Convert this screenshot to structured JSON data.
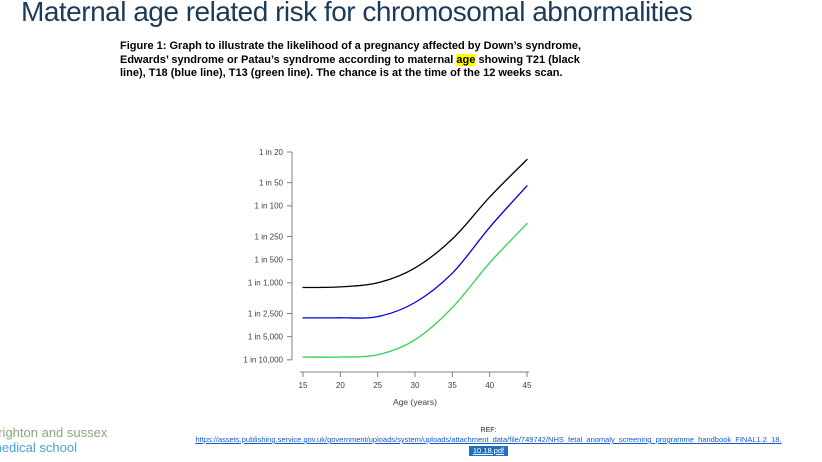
{
  "slide": {
    "title": "Maternal age related risk for chromosomal abnormalities",
    "caption": {
      "line1": "Figure 1: Graph to illustrate the likelihood of a pregnancy affected by Down’s syndrome,",
      "line2_pre": "Edwards’ syndrome or Patau’s syndrome according to maternal ",
      "line2_highlight": "age",
      "line2_post": " showing T21 (black",
      "line3": "line), T18 (blue line), T13 (green line). The chance is at the time of the 12 weeks scan."
    },
    "footer": {
      "logo_line1": "brighton and sussex",
      "logo_line2": "medical school",
      "ref_label": "REF:",
      "ref_url_line1": "https://assets.publishing.service.gov.uk/government/uploads/system/uploads/attachment_data/file/749742/NHS_fetal_anomaly_screening_programme_handbook_FINAL1.2_18.",
      "ref_url_line2": "10.18.pdf"
    }
  },
  "colors": {
    "title": "#1d3a56",
    "highlight": "#ffff00",
    "axis_line": "#808080",
    "tick_label": "#404040",
    "link": "#1459c7",
    "link_selection_bg": "#1e6fbe",
    "logo_green": "#8aa77c",
    "logo_blue": "#46a2d9"
  },
  "chart_data": {
    "type": "line",
    "title": "",
    "xlabel": "Age (years)",
    "ylabel": "",
    "x_axis": {
      "label": "Age (years)",
      "ticks": [
        15,
        20,
        25,
        30,
        35,
        40,
        45
      ],
      "lim": [
        15,
        45
      ]
    },
    "y_axis": {
      "scale": "log (risk '1 in N', N increases downward)",
      "ticks": [
        {
          "label": "1 in 20",
          "n": 20
        },
        {
          "label": "1 in 50",
          "n": 50
        },
        {
          "label": "1 in 100",
          "n": 100
        },
        {
          "label": "1 in 250",
          "n": 250
        },
        {
          "label": "1 in 500",
          "n": 500
        },
        {
          "label": "1 in 1,000",
          "n": 1000
        },
        {
          "label": "1 in 2,500",
          "n": 2500
        },
        {
          "label": "1 in 5,000",
          "n": 5000
        },
        {
          "label": "1 in 10,000",
          "n": 10000
        }
      ],
      "lim_n": [
        20,
        10000
      ]
    },
    "grid": false,
    "legend": "none (described in caption: T21 black, T18 blue, T13 green)",
    "series": [
      {
        "name": "T21 (Down's syndrome)",
        "color": "#000000",
        "x": [
          15,
          20,
          25,
          30,
          35,
          40,
          45
        ],
        "risk_1_in": [
          1150,
          1130,
          1000,
          640,
          270,
          77,
          25
        ]
      },
      {
        "name": "T18 (Edwards' syndrome)",
        "color": "#0000dd",
        "x": [
          15,
          20,
          25,
          30,
          35,
          40,
          45
        ],
        "risk_1_in": [
          2850,
          2850,
          2750,
          1800,
          750,
          190,
          55
        ]
      },
      {
        "name": "T13 (Patau's syndrome)",
        "color": "#2ed34f",
        "x": [
          15,
          20,
          25,
          30,
          35,
          40,
          45
        ],
        "risk_1_in": [
          9200,
          9200,
          8600,
          5500,
          2100,
          550,
          170
        ]
      }
    ]
  }
}
